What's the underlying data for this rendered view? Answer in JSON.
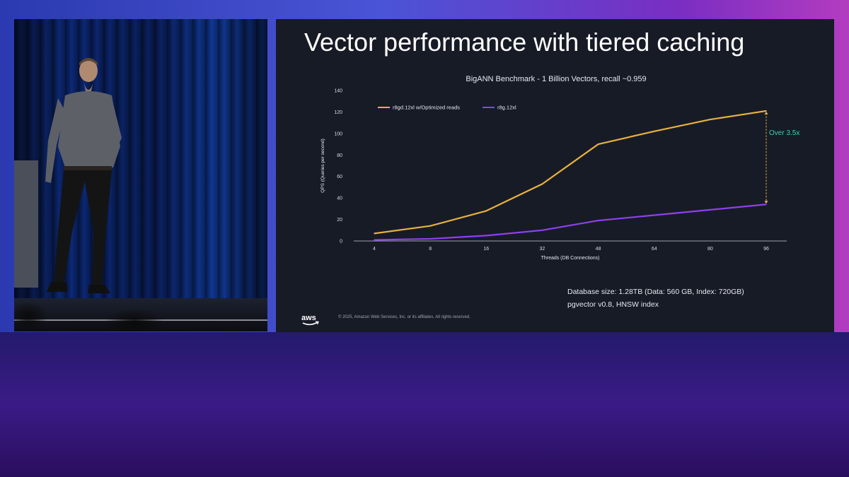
{
  "slide": {
    "title": "Vector performance with tiered caching",
    "database_size": "Database size: 1.28TB (Data: 560 GB, Index: 720GB)",
    "index_info": "pgvector v0.8, HNSW index",
    "copyright": "© 2025, Amazon Web Services, Inc. or its affiliates. All rights reserved.",
    "logo": "aws"
  },
  "colors": {
    "slide_bg": "#171b26",
    "series_1": "#e8b13c",
    "series_2": "#8f3ff0",
    "annotation": "#3ecfb2"
  },
  "chart_data": {
    "type": "line",
    "title": "BigANN Benchmark - 1 Billion Vectors, recall ~0.959",
    "xlabel": "Threads (DB Connections)",
    "ylabel": "QPS (Queries per second)",
    "categories": [
      "4",
      "8",
      "16",
      "32",
      "48",
      "64",
      "80",
      "96"
    ],
    "ylim": [
      0,
      140
    ],
    "yticks": [
      0,
      20,
      40,
      60,
      80,
      100,
      120,
      140
    ],
    "grid": false,
    "legend": "top-left",
    "series": [
      {
        "name": "r8gd.12xl w/Optimized reads",
        "color": "#e8b13c",
        "values": [
          7,
          14,
          28,
          53,
          90,
          102,
          113,
          121
        ]
      },
      {
        "name": "r8g.12xl",
        "color": "#8f3ff0",
        "values": [
          1,
          2,
          5,
          10,
          19,
          24,
          29,
          34
        ]
      }
    ],
    "annotation": {
      "text": "Over 3.5x",
      "at": "96",
      "from": 34,
      "to": 121
    }
  }
}
